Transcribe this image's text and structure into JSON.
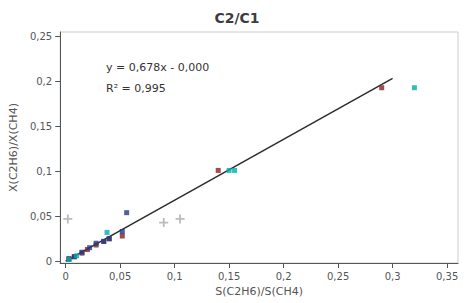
{
  "chart_data": {
    "type": "scatter",
    "title": "C2/C1",
    "xlabel": "S(C2H6)/S(CH4)",
    "ylabel": "X(C2H6)/X(CH4)",
    "annotations": [
      "y = 0,678x - 0,000",
      "R² = 0,995"
    ],
    "xlim": [
      -0.005,
      0.36
    ],
    "ylim": [
      -0.002,
      0.255
    ],
    "xticks": [
      0,
      {
        "value": 0.05,
        "label": "0,05"
      },
      {
        "value": 0.1,
        "label": "0,1"
      },
      {
        "value": 0.15,
        "label": "0,15"
      },
      {
        "value": 0.2,
        "label": "0,2"
      },
      {
        "value": 0.25,
        "label": "0,25"
      },
      {
        "value": 0.3,
        "label": "0,3"
      },
      {
        "value": 0.35,
        "label": "0,35"
      }
    ],
    "yticks": [
      0,
      {
        "value": 0.05,
        "label": "0,05"
      },
      {
        "value": 0.1,
        "label": "0,1"
      },
      {
        "value": 0.15,
        "label": "0,15"
      },
      {
        "value": 0.2,
        "label": "0,2"
      },
      {
        "value": 0.25,
        "label": "0,25"
      }
    ],
    "grid": false,
    "series": [
      {
        "type": "line",
        "color": "#2C2C2C",
        "line_style": "solid",
        "x": [
          0.0,
          0.3
        ],
        "y": [
          0.0,
          0.2034
        ]
      },
      {
        "type": "scatter",
        "marker": "square",
        "color": "#8B2020",
        "x": [
          0.003,
          0.008,
          0.015,
          0.02,
          0.028,
          0.035,
          0.04,
          0.052,
          0.14,
          0.29
        ],
        "y": [
          0.003,
          0.005,
          0.009,
          0.013,
          0.018,
          0.022,
          0.025,
          0.028,
          0.101,
          0.193
        ]
      },
      {
        "type": "scatter",
        "marker": "square",
        "color": "#1F3B8C",
        "x": [
          0.003,
          0.008,
          0.015,
          0.022,
          0.028,
          0.035,
          0.04,
          0.052,
          0.056
        ],
        "y": [
          0.002,
          0.005,
          0.01,
          0.015,
          0.02,
          0.022,
          0.025,
          0.033,
          0.054
        ]
      },
      {
        "type": "scatter",
        "marker": "square",
        "color": "#00AEAE",
        "x": [
          0.003,
          0.01,
          0.038,
          0.15,
          0.155,
          0.32
        ],
        "y": [
          0.002,
          0.006,
          0.032,
          0.101,
          0.101,
          0.193
        ]
      },
      {
        "type": "scatter",
        "marker": "plus",
        "color": "#AAAAAA",
        "x": [
          0.002
        ],
        "y": [
          0.047
        ]
      },
      {
        "type": "scatter",
        "marker": "plus",
        "color": "#AAAAAA",
        "x": [
          0.09,
          0.105
        ],
        "y": [
          0.043,
          0.047
        ]
      }
    ]
  }
}
